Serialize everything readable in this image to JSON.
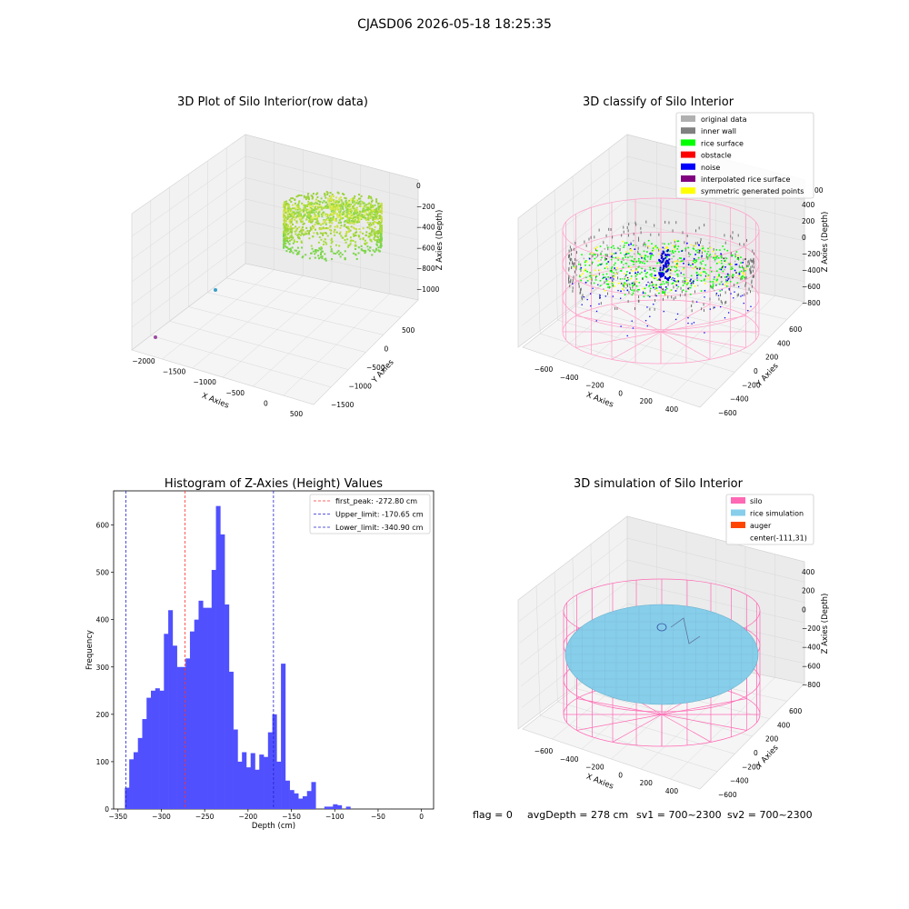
{
  "suptitle": "CJASD06 2026-05-18 18:25:35",
  "footer": {
    "flag": "flag = 0",
    "avgdepth": "avgDepth = 278 cm",
    "sv1": "sv1 = 700~2300",
    "sv2": "sv2 = 700~2300"
  },
  "colors": {
    "histogram_bar": "#5050ff",
    "first_peak": "#ff3030",
    "limits": "#2020d0",
    "silo": "#ff69b4",
    "rice_simulation": "#87ceeb",
    "auger": "#ff4500",
    "original_data": "#b0b0b0",
    "inner_wall": "#808080",
    "rice_surface": "#00ff00",
    "obstacle": "#ff0000",
    "noise": "#0000ff",
    "interpolated_rice_surface": "#800080",
    "symmetric_generated_points": "#ffff00"
  },
  "panel1": {
    "title": "3D Plot of Silo Interior(row data)",
    "xlabel": "X Axies",
    "ylabel": "Y Axies",
    "zlabel": "Z Axies (Depth)",
    "xticks": [
      "−2000",
      "−1500",
      "−1000",
      "−500",
      "0",
      "500"
    ],
    "yticks": [
      "500",
      "0",
      "−500",
      "−1000",
      "−1500"
    ],
    "zticks": [
      "0",
      "−200",
      "−400",
      "−600",
      "−800",
      "−1000"
    ]
  },
  "panel2": {
    "title": "3D classify of Silo Interior",
    "xlabel": "X Axies",
    "ylabel": "Y Axies",
    "zlabel": "Z Axies (Depth)",
    "xticks": [
      "−600",
      "−400",
      "−200",
      "0",
      "200",
      "400"
    ],
    "yticks": [
      "600",
      "400",
      "200",
      "0",
      "−200",
      "−400",
      "−600"
    ],
    "zticks": [
      "400",
      "200",
      "0",
      "−200",
      "−400",
      "−600",
      "−800"
    ],
    "zticks_top_cut": "00",
    "legend": [
      {
        "label": "original data",
        "color": "#b0b0b0"
      },
      {
        "label": "inner wall",
        "color": "#808080"
      },
      {
        "label": "rice surface",
        "color": "#00ff00"
      },
      {
        "label": "obstacle",
        "color": "#ff0000"
      },
      {
        "label": "noise",
        "color": "#0000ff"
      },
      {
        "label": "interpolated rice surface",
        "color": "#800080"
      },
      {
        "label": "symmetric generated points",
        "color": "#ffff00"
      }
    ]
  },
  "panel4": {
    "title": "3D simulation of Silo Interior",
    "xlabel": "X Axies",
    "ylabel": "Y Axies",
    "zlabel": "Z Axies (Depth)",
    "xticks": [
      "−600",
      "−400",
      "−200",
      "0",
      "200",
      "400"
    ],
    "yticks": [
      "600",
      "400",
      "200",
      "0",
      "−200",
      "−400",
      "−600"
    ],
    "zticks": [
      "400",
      "200",
      "0",
      "−200",
      "−400",
      "−600",
      "−800"
    ],
    "legend": [
      {
        "label": "silo",
        "color": "#ff69b4",
        "kind": "patch"
      },
      {
        "label": "rice simulation",
        "color": "#87ceeb",
        "kind": "patch"
      },
      {
        "label": "auger",
        "color": "#ff4500",
        "kind": "patch"
      },
      {
        "label": "center(-111,31)",
        "color": "",
        "kind": "none"
      }
    ]
  },
  "chart_data": {
    "type": "bar",
    "title": "Histogram of Z-Axies (Height) Values",
    "xlabel": "Depth (cm)",
    "ylabel": "Frequency",
    "xlim": [
      -355,
      14
    ],
    "ylim": [
      0,
      672
    ],
    "bin_width": 5,
    "xticks": [
      -350,
      -300,
      -250,
      -200,
      -150,
      -100,
      -50,
      0
    ],
    "yticks": [
      0,
      100,
      200,
      300,
      400,
      500,
      600
    ],
    "bin_starts": [
      -342,
      -337,
      -332,
      -327,
      -322,
      -317,
      -312,
      -307,
      -302,
      -297,
      -292,
      -287,
      -282,
      -277,
      -272,
      -267,
      -262,
      -257,
      -252,
      -247,
      -242,
      -237,
      -232,
      -227,
      -222,
      -217,
      -212,
      -207,
      -202,
      -197,
      -192,
      -187,
      -182,
      -177,
      -172,
      -167,
      -162,
      -157,
      -152,
      -147,
      -142,
      -137,
      -132,
      -127,
      -122,
      -117,
      -112,
      -107,
      -102,
      -97,
      -92,
      -87,
      -82,
      -77,
      -72,
      -67,
      -62,
      -57,
      -52,
      -47,
      -42,
      -37,
      -32,
      -27,
      -22,
      -17,
      -12,
      -7,
      -2
    ],
    "values": [
      45,
      105,
      120,
      150,
      190,
      235,
      250,
      255,
      250,
      370,
      420,
      345,
      300,
      300,
      318,
      375,
      400,
      440,
      425,
      425,
      505,
      640,
      580,
      432,
      290,
      168,
      100,
      120,
      88,
      118,
      83,
      115,
      110,
      162,
      200,
      100,
      307,
      60,
      40,
      33,
      22,
      27,
      38,
      57,
      0,
      0,
      5,
      5,
      10,
      8,
      0,
      5,
      0,
      0,
      0,
      0,
      0,
      0,
      0,
      0,
      0,
      0,
      0,
      0,
      0,
      0,
      0,
      0,
      0
    ],
    "lines": [
      {
        "name": "first_peak",
        "label": "first_peak: -272.80 cm",
        "x": -272.8,
        "color": "#ff3030"
      },
      {
        "name": "upper_limit",
        "label": "Upper_limit: -170.65 cm",
        "x": -170.65,
        "color": "#2020d0"
      },
      {
        "name": "lower_limit",
        "label": "Lower_limit: -340.90 cm",
        "x": -340.9,
        "color": "#2020d0"
      }
    ],
    "legend_position": "upper right"
  }
}
